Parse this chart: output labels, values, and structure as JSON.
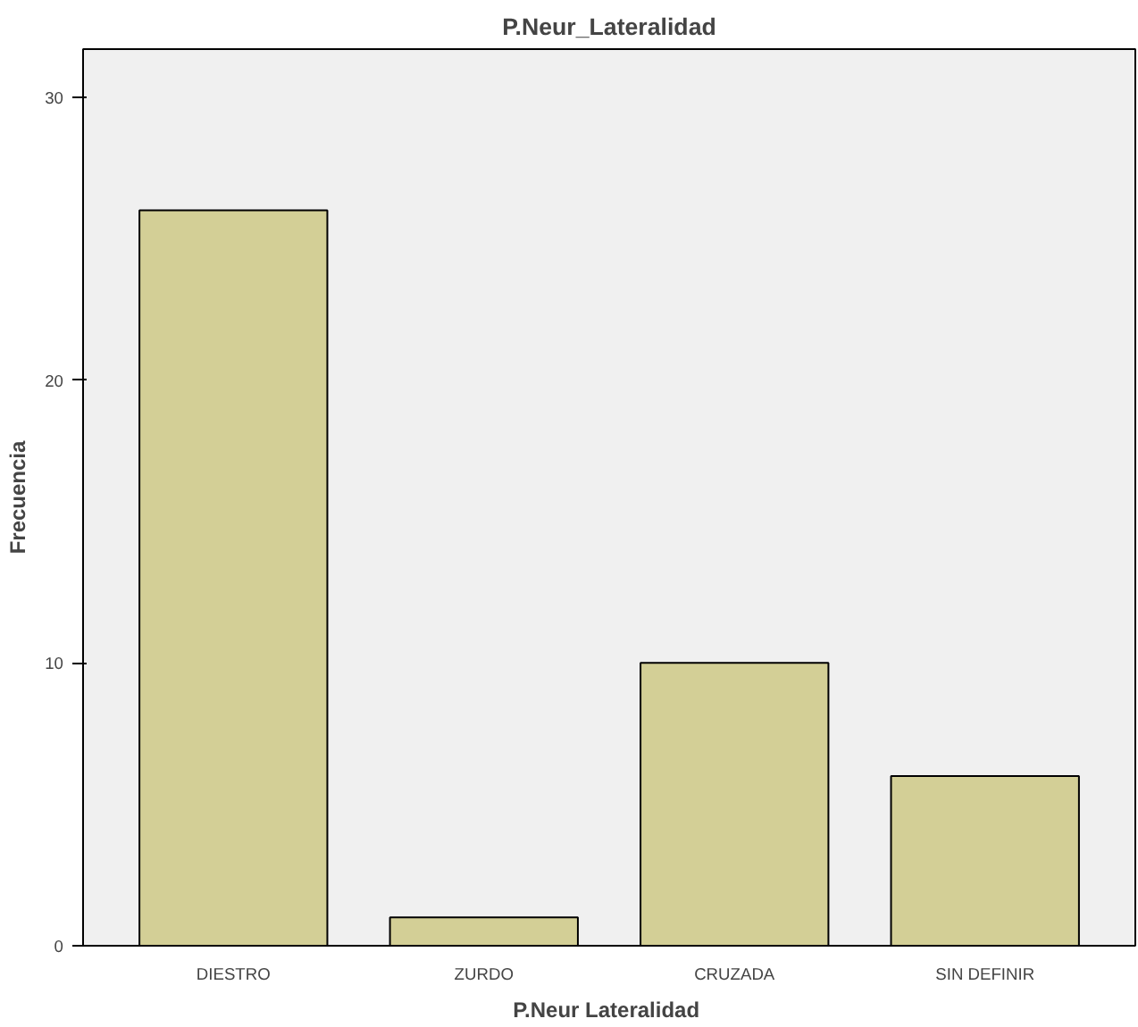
{
  "chart_data": {
    "type": "bar",
    "title": "P.Neur_Lateralidad",
    "xlabel": "P.Neur  Lateralidad",
    "ylabel": "Frecuencia",
    "categories": [
      "DIESTRO",
      "ZURDO",
      "CRUZADA",
      "SIN DEFINIR"
    ],
    "values": [
      26,
      1,
      10,
      6
    ],
    "color": "#d3cf96",
    "ylim": [
      0,
      31.7
    ],
    "yticks": [
      0,
      10,
      20,
      30
    ],
    "grid": false
  }
}
